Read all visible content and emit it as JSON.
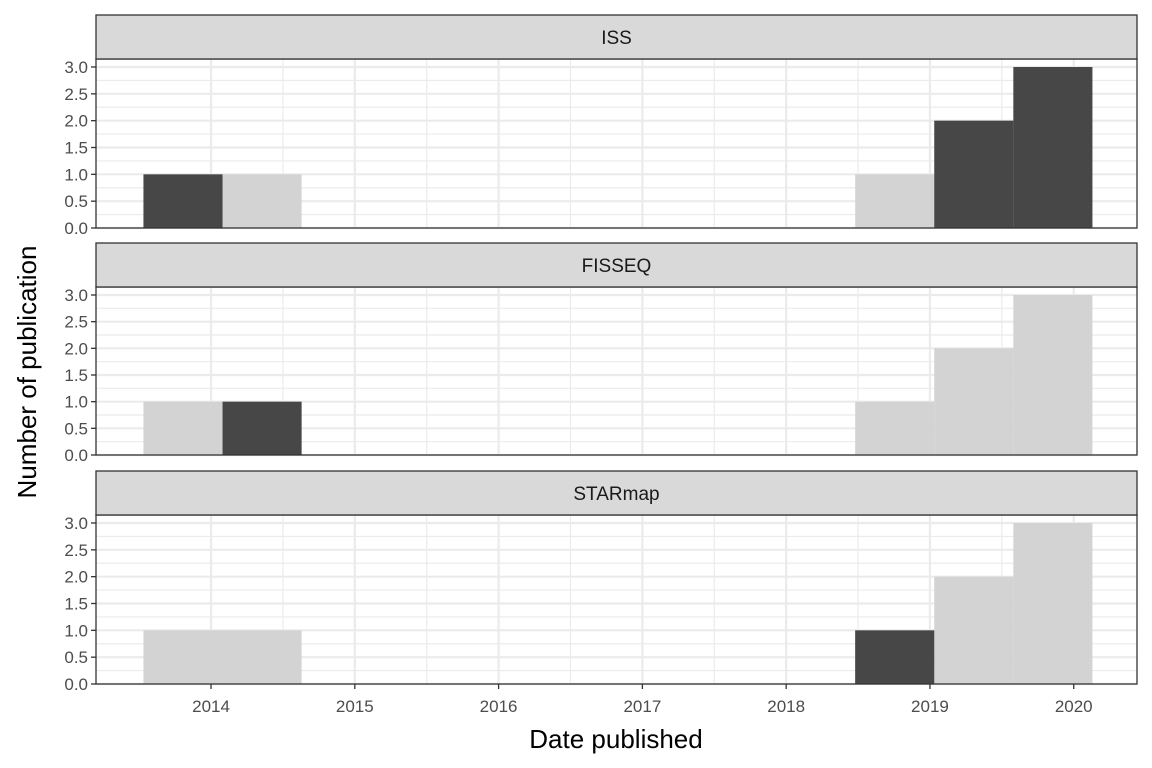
{
  "chart_data": {
    "type": "bar",
    "chart_kind": "faceted histogram",
    "xlabel": "Date published",
    "ylabel": "Number of publication",
    "xlim": [
      2013.2,
      2020.44
    ],
    "ylim": [
      0,
      3.25
    ],
    "x_ticks": [
      "2014",
      "2015",
      "2016",
      "2017",
      "2018",
      "2019",
      "2020"
    ],
    "y_ticks": [
      "0.0",
      "0.5",
      "1.0",
      "1.5",
      "2.0",
      "2.5",
      "3.0"
    ],
    "grid": true,
    "bin_width": 0.55,
    "bins": [
      {
        "start": 2013.53,
        "end": 2014.08
      },
      {
        "start": 2014.08,
        "end": 2014.63
      },
      {
        "start": 2018.48,
        "end": 2019.03
      },
      {
        "start": 2019.03,
        "end": 2019.58
      },
      {
        "start": 2019.58,
        "end": 2020.13
      }
    ],
    "total_counts": [
      1,
      1,
      1,
      2,
      3
    ],
    "panels": [
      {
        "name": "ISS",
        "counts": [
          1,
          0,
          0,
          2,
          3
        ]
      },
      {
        "name": "FISSEQ",
        "counts": [
          0,
          1,
          0,
          0,
          0
        ]
      },
      {
        "name": "STARmap",
        "counts": [
          0,
          0,
          1,
          0,
          0
        ]
      }
    ]
  },
  "colors": {
    "background_bar": "#d3d3d3",
    "highlight_bar": "#474747",
    "strip_fill": "#d9d9d9",
    "strip_border": "#333333",
    "grid": "#ebebeb",
    "panel_border": "#333333"
  }
}
